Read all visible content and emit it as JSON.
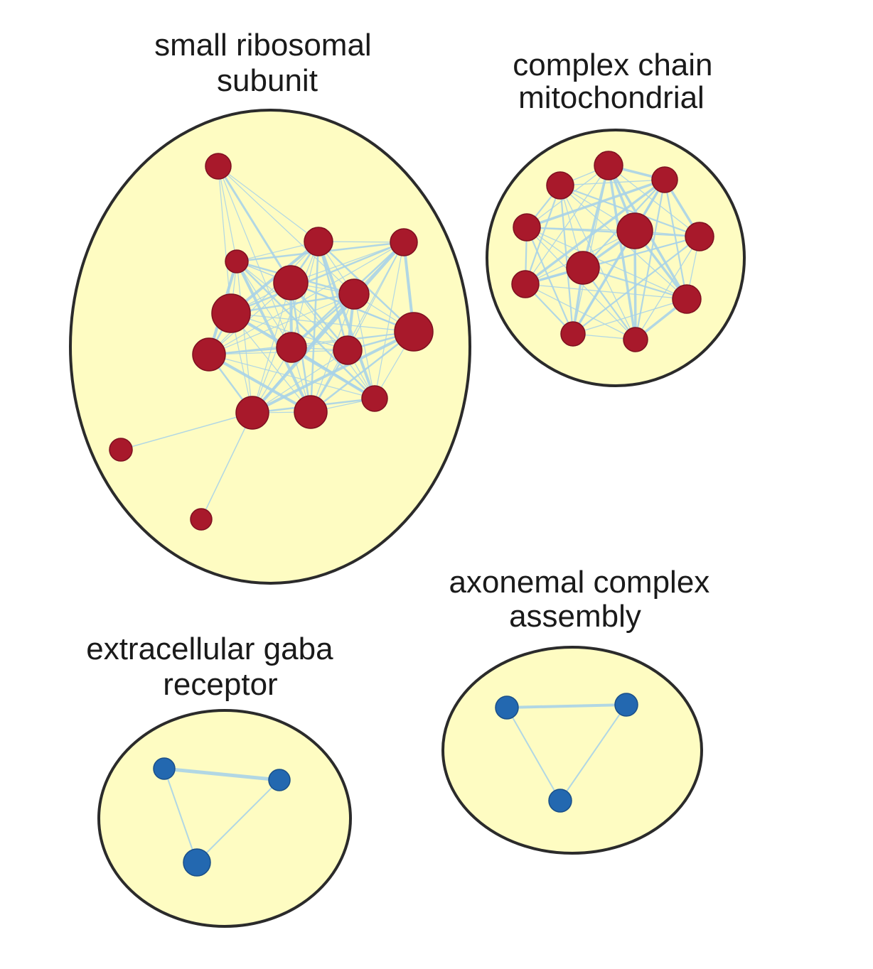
{
  "colors": {
    "cluster_fill": "#fefcc2",
    "cluster_stroke": "#2b2b2b",
    "edge": "#a9d3e8",
    "node_red": "#a8192b",
    "node_red_stroke": "#7e1020",
    "node_blue": "#2368b0",
    "node_blue_stroke": "#1a4f88"
  },
  "clusters": [
    {
      "id": "ribosomal",
      "label_lines": [
        "small ribosomal",
        "subunit"
      ],
      "node_color": "red"
    },
    {
      "id": "mito",
      "label_lines": [
        "complex chain",
        "mitochondrial"
      ],
      "node_color": "red"
    },
    {
      "id": "gaba",
      "label_lines": [
        "extracellular gaba",
        "receptor"
      ],
      "node_color": "blue"
    },
    {
      "id": "axonemal",
      "label_lines": [
        "axonemal complex",
        "assembly"
      ],
      "node_color": "blue"
    }
  ]
}
